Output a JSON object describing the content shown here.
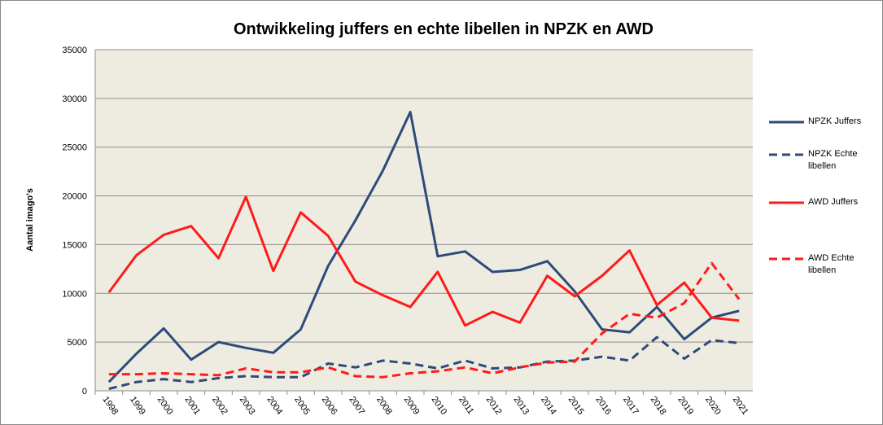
{
  "chart_data": {
    "type": "line",
    "title": "Ontwikkeling juffers en echte libellen in NPZK en AWD",
    "y_label": "Aantal imago's",
    "categories": [
      "1998",
      "1999",
      "2000",
      "2001",
      "2002",
      "2003",
      "2004",
      "2005",
      "2006",
      "2007",
      "2008",
      "2009",
      "2010",
      "2011",
      "2012",
      "2013",
      "2014",
      "2015",
      "2016",
      "2017",
      "2018",
      "2019",
      "2020",
      "2021"
    ],
    "series": [
      {
        "name": "NPZK Juffers",
        "color": "#2e4a7a",
        "dashed": false,
        "values": [
          900,
          3800,
          6400,
          3200,
          5000,
          4400,
          3900,
          6300,
          12800,
          17500,
          22600,
          28600,
          13800,
          14300,
          12200,
          12400,
          13300,
          10200,
          6300,
          6000,
          8600,
          5300,
          7500,
          8200
        ]
      },
      {
        "name": "NPZK Echte libellen",
        "color": "#2e4a7a",
        "dashed": true,
        "values": [
          200,
          900,
          1200,
          900,
          1300,
          1500,
          1400,
          1400,
          2800,
          2400,
          3100,
          2800,
          2300,
          3100,
          2300,
          2400,
          3000,
          3100,
          3500,
          3100,
          5500,
          3300,
          5200,
          4900
        ]
      },
      {
        "name": "AWD Juffers",
        "color": "#ff1a1a",
        "dashed": false,
        "values": [
          10100,
          13900,
          16000,
          16900,
          13600,
          19900,
          12300,
          18300,
          15900,
          11200,
          9800,
          8600,
          12200,
          6700,
          8100,
          7000,
          11800,
          9700,
          11800,
          14400,
          8800,
          11100,
          7500,
          7200
        ]
      },
      {
        "name": "AWD Echte libellen",
        "color": "#ff1a1a",
        "dashed": true,
        "values": [
          1700,
          1700,
          1800,
          1700,
          1600,
          2300,
          1900,
          1900,
          2400,
          1500,
          1400,
          1800,
          2000,
          2400,
          1800,
          2400,
          2900,
          3000,
          5900,
          7900,
          7500,
          9000,
          13100,
          9400
        ]
      }
    ],
    "ylim": [
      0,
      35000
    ],
    "yticks": [
      0,
      5000,
      10000,
      15000,
      20000,
      25000,
      30000,
      35000
    ],
    "grid": true,
    "legend": "right"
  }
}
